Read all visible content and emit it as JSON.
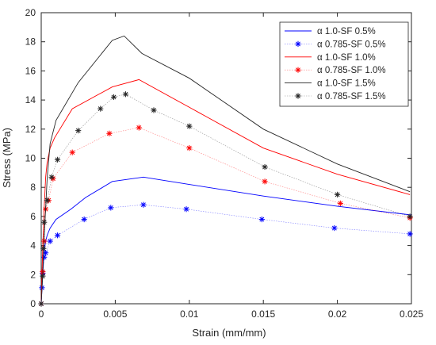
{
  "chart_data": {
    "type": "line",
    "xlabel": "Strain (mm/mm)",
    "ylabel": "Stress (MPa)",
    "xlim": [
      0,
      0.025
    ],
    "ylim": [
      0,
      20
    ],
    "xticks": [
      "0",
      "0.005",
      "0.01",
      "0.015",
      "0.02",
      "0.025"
    ],
    "yticks": [
      "0",
      "2",
      "4",
      "6",
      "8",
      "10",
      "12",
      "14",
      "16",
      "18",
      "20"
    ],
    "legend_position": "top-right",
    "series": [
      {
        "name": "1.0-SF 0.5%",
        "color": "#0000ff",
        "style": "line",
        "x": [
          0,
          0.0001,
          0.0002,
          0.0003,
          0.0004,
          0.0006,
          0.001,
          0.002,
          0.003,
          0.0048,
          0.0069,
          0.01,
          0.015,
          0.02,
          0.025
        ],
        "y": [
          0,
          2.0,
          3.6,
          4.3,
          4.7,
          5.2,
          5.8,
          6.5,
          7.3,
          8.4,
          8.7,
          8.2,
          7.4,
          6.7,
          6.1
        ]
      },
      {
        "name": "0.785-SF 0.5%",
        "color": "#0000ff",
        "style": "marker-dotted",
        "x": [
          0,
          5e-05,
          0.0001,
          0.0002,
          0.0003,
          0.0006,
          0.0011,
          0.0029,
          0.0047,
          0.0069,
          0.0098,
          0.0149,
          0.0198,
          0.0249
        ],
        "y": [
          0,
          1.1,
          2.1,
          3.2,
          3.5,
          4.3,
          4.7,
          5.8,
          6.6,
          6.8,
          6.5,
          5.8,
          5.2,
          4.8
        ]
      },
      {
        "name": "1.0-SF 1.0%",
        "color": "#ff0000",
        "style": "line",
        "x": [
          0,
          0.0001,
          0.0002,
          0.0003,
          0.0004,
          0.0006,
          0.0009,
          0.0021,
          0.0048,
          0.0066,
          0.01,
          0.015,
          0.02,
          0.0249
        ],
        "y": [
          0,
          3.8,
          6.6,
          8.7,
          9.7,
          10.7,
          11.4,
          13.4,
          14.9,
          15.4,
          13.5,
          10.7,
          8.9,
          7.5
        ]
      },
      {
        "name": "0.785-SF 1.0%",
        "color": "#ff0000",
        "style": "marker-dotted",
        "x": [
          0,
          0.0001,
          0.0002,
          0.0003,
          0.0005,
          0.0008,
          0.0021,
          0.0046,
          0.0066,
          0.01,
          0.0151,
          0.0202,
          0.0249
        ],
        "y": [
          0,
          2.2,
          4.3,
          6.5,
          7.1,
          8.6,
          10.4,
          11.7,
          12.1,
          10.7,
          8.4,
          6.9,
          5.9
        ]
      },
      {
        "name": "1.0-SF 1.5%",
        "color": "#262626",
        "style": "line",
        "x": [
          0,
          0.0001,
          0.0002,
          0.0003,
          0.0004,
          0.0006,
          0.001,
          0.0025,
          0.0048,
          0.0056,
          0.0068,
          0.01,
          0.015,
          0.02,
          0.0249
        ],
        "y": [
          0,
          2.0,
          4.5,
          6.6,
          8.6,
          11.0,
          12.6,
          15.2,
          18.1,
          18.4,
          17.2,
          15.5,
          12.0,
          9.6,
          7.7
        ]
      },
      {
        "name": "0.785-SF 1.5%",
        "color": "#262626",
        "style": "marker-dotted",
        "x": [
          0,
          0.0001,
          0.00015,
          0.0002,
          0.0004,
          0.0007,
          0.0011,
          0.0025,
          0.004,
          0.0049,
          0.0057,
          0.0076,
          0.01,
          0.0151,
          0.02,
          0.0249
        ],
        "y": [
          0,
          1.9,
          3.8,
          5.6,
          7.1,
          8.7,
          9.9,
          11.9,
          13.4,
          14.2,
          14.4,
          13.3,
          12.2,
          9.4,
          7.5,
          6.0
        ]
      }
    ],
    "legend": [
      {
        "prefix": "α",
        "label": "1.0-SF 0.5%",
        "series": 0
      },
      {
        "prefix": "α",
        "label": "0.785-SF 0.5%",
        "series": 1
      },
      {
        "prefix": "α",
        "label": "1.0-SF 1.0%",
        "series": 2
      },
      {
        "prefix": "α",
        "label": "0.785-SF 1.0%",
        "series": 3
      },
      {
        "prefix": "α",
        "label": "1.0-SF 1.5%",
        "series": 4
      },
      {
        "prefix": "α",
        "label": "0.785-SF 1.5%",
        "series": 5
      }
    ]
  }
}
